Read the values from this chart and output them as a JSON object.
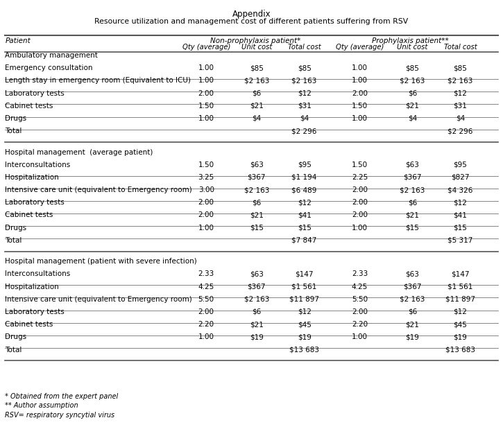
{
  "title1": "Appendix",
  "title2": "Resource utilization and management cost of different patients suffering from RSV",
  "col_header_left": "Patient",
  "col_group1": "Non-prophylaxis patient*",
  "col_group2": "Prophylaxis patient**",
  "col_sub": [
    "Qty (average)",
    "Unit cost",
    "Total cost",
    "Qty (average)",
    "Unit cost",
    "Total cost"
  ],
  "sections": [
    {
      "section_title": "Ambulatory management",
      "rows": [
        {
          "label": "Emergency consultation",
          "np_qty": "1.00",
          "np_unit": "$85",
          "np_total": "$85",
          "p_qty": "1.00",
          "p_unit": "$85",
          "p_total": "$85"
        },
        {
          "label": "Length stay in emergency room (Equivalent to ICU)",
          "np_qty": "1.00",
          "np_unit": "$2 163",
          "np_total": "$2 163",
          "p_qty": "1.00",
          "p_unit": "$2 163",
          "p_total": "$2 163"
        },
        {
          "label": "Laboratory tests",
          "np_qty": "2.00",
          "np_unit": "$6",
          "np_total": "$12",
          "p_qty": "2.00",
          "p_unit": "$6",
          "p_total": "$12"
        },
        {
          "label": "Cabinet tests",
          "np_qty": "1.50",
          "np_unit": "$21",
          "np_total": "$31",
          "p_qty": "1.50",
          "p_unit": "$21",
          "p_total": "$31"
        },
        {
          "label": "Drugs",
          "np_qty": "1.00",
          "np_unit": "$4",
          "np_total": "$4",
          "p_qty": "1.00",
          "p_unit": "$4",
          "p_total": "$4"
        }
      ],
      "total_np": "$2 296",
      "total_p": "$2 296"
    },
    {
      "section_title": "Hospital management  (average patient)",
      "rows": [
        {
          "label": "Interconsultations",
          "np_qty": "1.50",
          "np_unit": "$63",
          "np_total": "$95",
          "p_qty": "1.50",
          "p_unit": "$63",
          "p_total": "$95"
        },
        {
          "label": "Hospitalization",
          "np_qty": "3.25",
          "np_unit": "$367",
          "np_total": "$1 194",
          "p_qty": "2.25",
          "p_unit": "$367",
          "p_total": "$827"
        },
        {
          "label": "Intensive care unit (equivalent to Emergency room)",
          "np_qty": "3.00",
          "np_unit": "$2 163",
          "np_total": "$6 489",
          "p_qty": "2.00",
          "p_unit": "$2 163",
          "p_total": "$4 326"
        },
        {
          "label": "Laboratory tests",
          "np_qty": "2.00",
          "np_unit": "$6",
          "np_total": "$12",
          "p_qty": "2.00",
          "p_unit": "$6",
          "p_total": "$12"
        },
        {
          "label": "Cabinet tests",
          "np_qty": "2.00",
          "np_unit": "$21",
          "np_total": "$41",
          "p_qty": "2.00",
          "p_unit": "$21",
          "p_total": "$41"
        },
        {
          "label": "Drugs",
          "np_qty": "1.00",
          "np_unit": "$15",
          "np_total": "$15",
          "p_qty": "1.00",
          "p_unit": "$15",
          "p_total": "$15"
        }
      ],
      "total_np": "$7 847",
      "total_p": "$5 317"
    },
    {
      "section_title": "Hospital management (patient with severe infection)",
      "rows": [
        {
          "label": "Interconsultations",
          "np_qty": "2.33",
          "np_unit": "$63",
          "np_total": "$147",
          "p_qty": "2.33",
          "p_unit": "$63",
          "p_total": "$147"
        },
        {
          "label": "Hospitalization",
          "np_qty": "4.25",
          "np_unit": "$367",
          "np_total": "$1 561",
          "p_qty": "4.25",
          "p_unit": "$367",
          "p_total": "$1 561"
        },
        {
          "label": "Intensive care unit (equivalent to Emergency room)",
          "np_qty": "5.50",
          "np_unit": "$2 163",
          "np_total": "$11 897",
          "p_qty": "5.50",
          "p_unit": "$2 163",
          "p_total": "$11 897"
        },
        {
          "label": "Laboratory tests",
          "np_qty": "2.00",
          "np_unit": "$6",
          "np_total": "$12",
          "p_qty": "2.00",
          "p_unit": "$6",
          "p_total": "$12"
        },
        {
          "label": "Cabinet tests",
          "np_qty": "2.20",
          "np_unit": "$21",
          "np_total": "$45",
          "p_qty": "2.20",
          "p_unit": "$21",
          "p_total": "$45"
        },
        {
          "label": "Drugs",
          "np_qty": "1.00",
          "np_unit": "$19",
          "np_total": "$19",
          "p_qty": "1.00",
          "p_unit": "$19",
          "p_total": "$19"
        }
      ],
      "total_np": "$13 683",
      "total_p": "$13 683"
    }
  ],
  "footnotes": [
    "* Obtained from the expert panel",
    "** Author assumption",
    "RSV= respiratory syncytial virus"
  ],
  "bg_color": "#ffffff",
  "text_color": "#000000",
  "line_color": "#555555"
}
